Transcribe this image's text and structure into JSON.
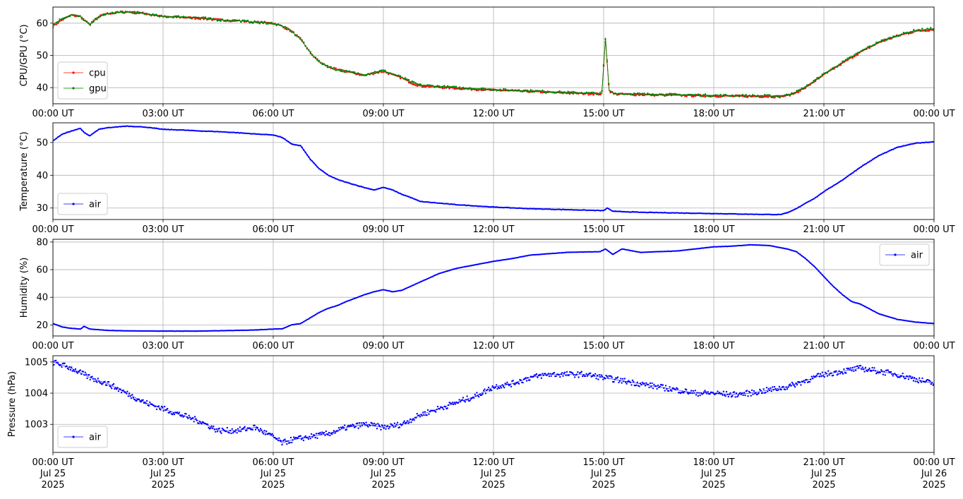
{
  "chart_data": [
    {
      "type": "line",
      "ylabel": "CPU/GPU (°C)",
      "ylim": [
        35,
        65
      ],
      "yticks": [
        40,
        50,
        60
      ],
      "grid": true,
      "legend": "lower-left",
      "series": [
        {
          "name": "cpu",
          "color": "#ff0000",
          "x": [
            0,
            0.25,
            0.5,
            0.75,
            1,
            1.25,
            1.5,
            2,
            2.5,
            3,
            3.5,
            4,
            4.5,
            5,
            5.5,
            6,
            6.25,
            6.5,
            6.75,
            7,
            7.25,
            7.5,
            7.75,
            8,
            8.25,
            8.5,
            8.75,
            9,
            9.25,
            9.5,
            9.75,
            10,
            11,
            12,
            13,
            14,
            14.95,
            15.05,
            15.15,
            15.3,
            16,
            17,
            18,
            19,
            19.8,
            20,
            20.25,
            20.5,
            20.75,
            21,
            21.5,
            22,
            22.5,
            23,
            23.5,
            24
          ],
          "values": [
            59,
            61,
            62.5,
            62,
            59.5,
            62,
            63,
            63.5,
            63,
            62,
            61.8,
            61.5,
            61,
            60.8,
            60.3,
            60,
            59,
            57.5,
            55,
            51,
            48,
            46.5,
            45.5,
            45,
            44.3,
            43.8,
            44.5,
            45,
            44,
            43,
            41.5,
            40.5,
            39.8,
            39.2,
            38.8,
            38.3,
            38,
            55,
            39,
            38,
            37.8,
            37.6,
            37.4,
            37.3,
            37.2,
            37.5,
            38.5,
            40,
            42,
            44,
            47.5,
            51,
            54,
            56,
            57.5,
            58
          ]
        },
        {
          "name": "gpu",
          "color": "#008000",
          "x": [
            0,
            0.25,
            0.5,
            0.75,
            1,
            1.25,
            1.5,
            2,
            2.5,
            3,
            3.5,
            4,
            4.5,
            5,
            5.5,
            6,
            6.25,
            6.5,
            6.75,
            7,
            7.25,
            7.5,
            7.75,
            8,
            8.25,
            8.5,
            8.75,
            9,
            9.25,
            9.5,
            9.75,
            10,
            11,
            12,
            13,
            14,
            14.95,
            15.05,
            15.15,
            15.3,
            16,
            17,
            18,
            19,
            19.8,
            20,
            20.25,
            20.5,
            20.75,
            21,
            21.5,
            22,
            22.5,
            23,
            23.5,
            24
          ],
          "values": [
            59.5,
            61.5,
            62.5,
            62,
            59.5,
            62,
            63,
            63.5,
            63,
            62,
            62,
            61.7,
            61,
            60.8,
            60.3,
            60,
            59,
            57.5,
            55,
            51,
            48,
            46.5,
            45.5,
            45,
            44.5,
            44,
            44.8,
            45.3,
            44.2,
            43.2,
            41.8,
            40.8,
            40,
            39.4,
            39,
            38.5,
            38.2,
            55.5,
            39.2,
            38.2,
            38,
            37.8,
            37.6,
            37.5,
            37.4,
            37.7,
            38.7,
            40.2,
            42.2,
            44.2,
            47.8,
            51.2,
            54.2,
            56.2,
            57.8,
            58.3
          ]
        }
      ]
    },
    {
      "type": "line",
      "ylabel": "Temperature (°C)",
      "ylim": [
        26.5,
        56
      ],
      "yticks": [
        30,
        40,
        50
      ],
      "grid": true,
      "legend": "lower-left",
      "series": [
        {
          "name": "air",
          "color": "#0000ff",
          "x": [
            0,
            0.25,
            0.5,
            0.75,
            0.85,
            1,
            1.25,
            1.5,
            2,
            2.5,
            3,
            3.5,
            4,
            4.5,
            5,
            5.5,
            6,
            6.25,
            6.5,
            6.75,
            7,
            7.25,
            7.5,
            7.75,
            8,
            8.25,
            8.5,
            8.75,
            9,
            9.25,
            9.5,
            9.75,
            10,
            11,
            12,
            13,
            14,
            15,
            15.1,
            15.25,
            16,
            17,
            18,
            19,
            19.8,
            20,
            20.25,
            20.5,
            20.75,
            21,
            21.5,
            22,
            22.5,
            23,
            23.5,
            24
          ],
          "values": [
            50.5,
            52.5,
            53.5,
            54.3,
            53,
            52,
            54,
            54.5,
            55,
            54.7,
            54,
            53.8,
            53.5,
            53.3,
            53,
            52.6,
            52.3,
            51.5,
            49.5,
            49,
            45,
            42,
            40,
            38.7,
            37.8,
            37,
            36.2,
            35.5,
            36.3,
            35.5,
            34.2,
            33.2,
            32,
            31,
            30.3,
            29.8,
            29.5,
            29.2,
            30,
            29,
            28.7,
            28.5,
            28.3,
            28.1,
            28,
            28.5,
            29.8,
            31.5,
            33,
            35,
            38.5,
            42.5,
            46,
            48.5,
            49.8,
            50.2
          ]
        }
      ]
    },
    {
      "type": "line",
      "ylabel": "Humidity (%)",
      "ylim": [
        12,
        82
      ],
      "yticks": [
        20,
        40,
        60,
        80
      ],
      "grid": true,
      "legend": "upper-right",
      "series": [
        {
          "name": "air",
          "color": "#0000ff",
          "x": [
            0,
            0.25,
            0.5,
            0.75,
            0.85,
            1,
            1.5,
            2,
            3,
            4,
            5,
            5.5,
            6,
            6.25,
            6.5,
            6.75,
            7,
            7.25,
            7.5,
            7.75,
            8,
            8.25,
            8.5,
            8.75,
            9,
            9.25,
            9.5,
            9.75,
            10,
            10.5,
            11,
            11.5,
            12,
            12.5,
            13,
            14,
            14.9,
            15.05,
            15.25,
            15.5,
            16,
            17,
            18,
            18.5,
            19,
            19.5,
            20,
            20.25,
            20.5,
            20.75,
            21,
            21.25,
            21.5,
            21.75,
            22,
            22.5,
            23,
            23.5,
            24
          ],
          "values": [
            21,
            18.5,
            17.5,
            17,
            19,
            17,
            16,
            15.7,
            15.5,
            15.5,
            16,
            16.3,
            17,
            17.2,
            20,
            21,
            25,
            29,
            32,
            34,
            37,
            39.5,
            42,
            44,
            45.5,
            44,
            45,
            48,
            51,
            57,
            61,
            63.5,
            66,
            68,
            70.5,
            72.5,
            73,
            75,
            71,
            75,
            72.5,
            73.5,
            76.5,
            77,
            78,
            77.5,
            75,
            73,
            68,
            62,
            55,
            48,
            42,
            37,
            35,
            28,
            24,
            22,
            21
          ]
        }
      ]
    },
    {
      "type": "line",
      "ylabel": "Pressure (hPa)",
      "ylim": [
        1002.1,
        1005.2
      ],
      "yticks": [
        1003,
        1004,
        1005
      ],
      "grid": true,
      "legend": "lower-left",
      "series": [
        {
          "name": "air",
          "color": "#0000ff",
          "x": [
            0,
            0.25,
            0.5,
            1,
            1.5,
            2,
            2.5,
            3,
            3.5,
            4,
            4.5,
            5,
            5.5,
            6,
            6.25,
            6.5,
            7,
            7.5,
            8,
            8.5,
            9,
            9.5,
            10,
            10.5,
            11,
            11.5,
            12,
            12.5,
            13,
            13.5,
            14,
            14.5,
            15,
            15.5,
            16,
            16.5,
            17,
            17.5,
            18,
            18.5,
            19,
            19.5,
            20,
            20.5,
            21,
            21.5,
            22,
            22.5,
            23,
            23.5,
            24
          ],
          "values": [
            1005,
            1004.9,
            1004.8,
            1004.5,
            1004.3,
            1004,
            1003.7,
            1003.5,
            1003.3,
            1003.1,
            1002.8,
            1002.8,
            1002.9,
            1002.6,
            1002.4,
            1002.5,
            1002.6,
            1002.7,
            1002.9,
            1003,
            1002.9,
            1003,
            1003.3,
            1003.5,
            1003.7,
            1003.9,
            1004.2,
            1004.3,
            1004.5,
            1004.6,
            1004.6,
            1004.6,
            1004.5,
            1004.4,
            1004.3,
            1004.2,
            1004.1,
            1004.0,
            1004.0,
            1003.95,
            1004,
            1004.1,
            1004.2,
            1004.4,
            1004.6,
            1004.7,
            1004.8,
            1004.7,
            1004.6,
            1004.45,
            1004.3
          ]
        }
      ]
    }
  ],
  "x_axis": {
    "range_hours": [
      0,
      24
    ],
    "tick_hours": [
      0,
      3,
      6,
      9,
      12,
      15,
      18,
      21,
      24
    ],
    "tick_labels": [
      "00:00 UT",
      "03:00 UT",
      "06:00 UT",
      "09:00 UT",
      "12:00 UT",
      "15:00 UT",
      "18:00 UT",
      "21:00 UT",
      "00:00 UT"
    ],
    "bottom_date_line1": [
      "Jul 25",
      "Jul 25",
      "Jul 25",
      "Jul 25",
      "Jul 25",
      "Jul 25",
      "Jul 25",
      "Jul 25",
      "Jul 26"
    ],
    "bottom_date_line2": [
      "2025",
      "2025",
      "2025",
      "2025",
      "2025",
      "2025",
      "2025",
      "2025",
      "2025"
    ]
  }
}
